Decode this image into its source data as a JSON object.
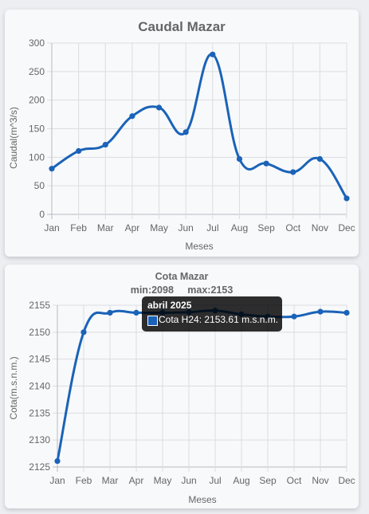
{
  "months": [
    "Jan",
    "Feb",
    "Mar",
    "Apr",
    "May",
    "Jun",
    "Jul",
    "Aug",
    "Sep",
    "Oct",
    "Nov",
    "Dec"
  ],
  "chart_data": [
    {
      "type": "line",
      "title": "Caudal Mazar",
      "xlabel": "Meses",
      "ylabel": "Caudal(m^3/s)",
      "categories": [
        "Jan",
        "Feb",
        "Mar",
        "Apr",
        "May",
        "Jun",
        "Jul",
        "Aug",
        "Sep",
        "Oct",
        "Nov",
        "Dec"
      ],
      "series": [
        {
          "values": [
            80,
            111,
            122,
            172,
            187,
            144,
            280,
            97,
            89,
            74,
            97,
            28
          ]
        }
      ],
      "ylim": [
        0,
        300
      ],
      "yticks": [
        "0",
        "50",
        "100",
        "150",
        "200",
        "250",
        "300"
      ],
      "grid": true,
      "color": "#1a63b8"
    },
    {
      "type": "line",
      "title": "Cota Mazar",
      "subtitle": "min:2098     max:2153",
      "xlabel": "Meses",
      "ylabel": "Cota(m.s.n.m.)",
      "categories": [
        "Jan",
        "Feb",
        "Mar",
        "Apr",
        "May",
        "Jun",
        "Jul",
        "Aug",
        "Sep",
        "Oct",
        "Nov",
        "Dec"
      ],
      "series": [
        {
          "name": "Cota H24",
          "values": [
            2126.1,
            2150.0,
            2153.6,
            2153.61,
            2153.6,
            2153.7,
            2154.0,
            2153.3,
            2152.9,
            2152.9,
            2153.8,
            2153.6
          ]
        }
      ],
      "ylim": [
        2125,
        2155
      ],
      "yticks": [
        "2125",
        "2130",
        "2135",
        "2140",
        "2145",
        "2150",
        "2155"
      ],
      "grid": true,
      "color": "#1a63b8",
      "tooltip": {
        "title": "abril 2025",
        "text": "Cota H24: 2153.61 m.s.n.m."
      }
    }
  ]
}
